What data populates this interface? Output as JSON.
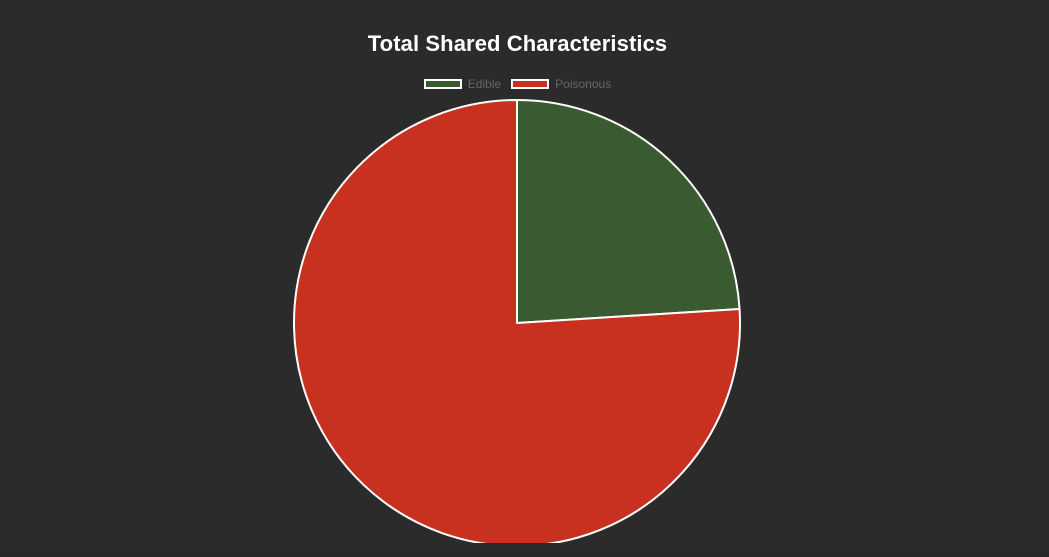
{
  "chart_data": {
    "type": "pie",
    "title": "Total Shared Characteristics",
    "categories": [
      "Edible",
      "Poisonous"
    ],
    "values": [
      24,
      76
    ],
    "colors": [
      "#3a5a31",
      "#c8301f"
    ],
    "border_color": "#ffffff",
    "legend_position": "top"
  }
}
